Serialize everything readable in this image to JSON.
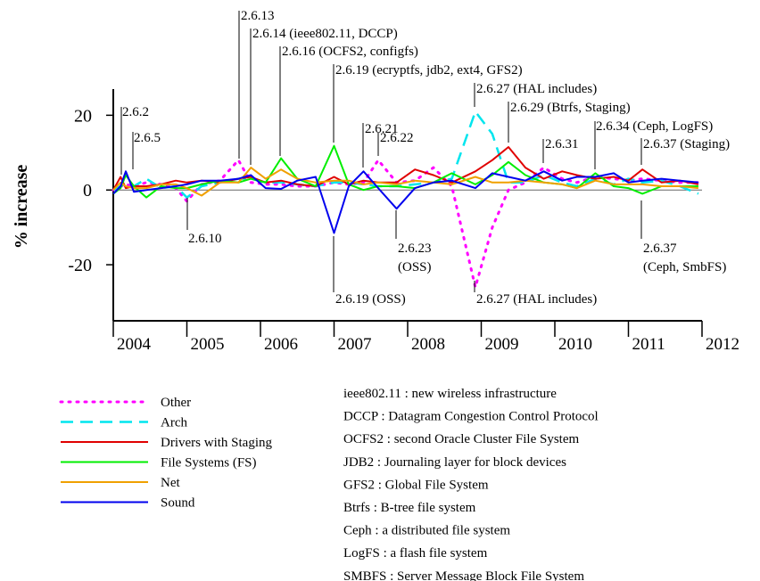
{
  "chart_data": {
    "type": "line",
    "y_label": "% increase",
    "x": [
      2004.0,
      2004.1,
      2004.17,
      2004.28,
      2004.45,
      2004.65,
      2004.85,
      2005.0,
      2005.2,
      2005.45,
      2005.7,
      2005.87,
      2006.07,
      2006.28,
      2006.5,
      2006.75,
      2007.0,
      2007.2,
      2007.4,
      2007.6,
      2007.85,
      2008.1,
      2008.35,
      2008.6,
      2008.92,
      2009.15,
      2009.37,
      2009.6,
      2009.85,
      2010.1,
      2010.3,
      2010.55,
      2010.8,
      2011.0,
      2011.19,
      2011.45,
      2011.7,
      2011.95
    ],
    "series": [
      {
        "name": "Other",
        "color": "#ff00ff",
        "style": "dotted",
        "values": [
          0,
          1,
          1.5,
          1,
          2,
          1.5,
          0.5,
          -3,
          1.5,
          2.5,
          8,
          2,
          1.5,
          1.5,
          1,
          1,
          2,
          1.5,
          2,
          8,
          2,
          2.5,
          6,
          1,
          -26,
          -10,
          0,
          2,
          6,
          3,
          2,
          3.5,
          3,
          2.5,
          3,
          2.5,
          2,
          2
        ]
      },
      {
        "name": "Arch",
        "color": "#00e5ee",
        "style": "dashed",
        "values": [
          0,
          1,
          2,
          1,
          3,
          0.5,
          1,
          -2,
          1,
          2,
          3,
          3,
          2,
          2,
          1.5,
          1,
          2,
          2,
          1.5,
          1,
          1,
          1.5,
          2,
          3,
          21,
          15,
          2,
          2,
          4,
          2,
          1,
          3,
          1.5,
          3,
          2,
          2.5,
          1,
          -1
        ]
      },
      {
        "name": "Drivers with Staging",
        "color": "#e00000",
        "style": "solid",
        "values": [
          0,
          3.5,
          0.5,
          1,
          1,
          1.5,
          2.5,
          2,
          2.5,
          2,
          3,
          3.5,
          2,
          2.5,
          1.5,
          1,
          3.5,
          1.5,
          2.5,
          2,
          2,
          5.5,
          4,
          2,
          5,
          8,
          11.5,
          6,
          3,
          5,
          4,
          3,
          3.5,
          2.5,
          5.5,
          2,
          2.5,
          1.5
        ]
      },
      {
        "name": "File Systems (FS)",
        "color": "#00ee00",
        "style": "solid",
        "values": [
          -1,
          0.5,
          4,
          1,
          -2,
          1,
          0.5,
          0.5,
          1.5,
          2.5,
          2,
          3,
          2,
          8.5,
          3,
          1,
          11.8,
          1.5,
          0,
          1,
          1,
          0.5,
          2,
          4.5,
          1.5,
          4,
          7.5,
          4,
          2,
          1.5,
          0.5,
          4.5,
          1,
          0.5,
          -1,
          1,
          1,
          1
        ]
      },
      {
        "name": "Net",
        "color": "#f0a000",
        "style": "solid",
        "values": [
          0,
          2,
          1,
          0.5,
          0.5,
          1.5,
          1.5,
          0.5,
          -1.5,
          2,
          2,
          6,
          3,
          5.5,
          3,
          2,
          2.5,
          2.5,
          1.5,
          2,
          1.5,
          2.5,
          2,
          1.5,
          3.5,
          2,
          2,
          2.5,
          2,
          1.5,
          0.5,
          2.5,
          1.5,
          1.5,
          1.5,
          1,
          1,
          0.5
        ]
      },
      {
        "name": "Sound",
        "color": "#0000ee",
        "style": "solid",
        "values": [
          -1,
          1,
          5,
          -0.5,
          0,
          0.5,
          1,
          1.5,
          2.5,
          2.5,
          3,
          4,
          0.5,
          0.3,
          2.5,
          3.5,
          -11.5,
          1,
          5,
          0.5,
          -5,
          0.5,
          2,
          2.5,
          0.5,
          4.5,
          3.5,
          2.5,
          5,
          2.5,
          3.5,
          3.5,
          4.5,
          2,
          2.5,
          3,
          2.5,
          2
        ]
      }
    ],
    "xlim": [
      2004,
      2012
    ],
    "xticks": [
      2004,
      2005,
      2006,
      2007,
      2008,
      2009,
      2010,
      2011,
      2012
    ],
    "ylim": [
      -35,
      27
    ],
    "yticks": [
      -20,
      0,
      20
    ],
    "annotations": [
      "2.6.13",
      "2.6.14 (ieee802.11, DCCP)",
      "2.6.16 (OCFS2, configfs)",
      "2.6.19 (ecryptfs, jdb2, ext4, GFS2)",
      "2.6.27 (HAL includes)",
      "2.6.29 (Btrfs, Staging)",
      "2.6.21",
      "2.6.22",
      "2.6.2",
      "2.6.5",
      "2.6.31",
      "2.6.34 (Ceph, LogFS)",
      "2.6.37 (Staging)",
      "2.6.10",
      "2.6.19 (OSS)",
      "2.6.23",
      "(OSS)",
      "2.6.27 (HAL includes)",
      "2.6.37",
      "(Ceph, SmbFS)"
    ],
    "glossary": [
      "ieee802.11 : new wireless infrastructure",
      "DCCP : Datagram Congestion Control Protocol",
      "OCFS2 : second Oracle Cluster File System",
      "JDB2 : Journaling layer for block devices",
      "GFS2 : Global File System",
      "Btrfs : B-tree file system",
      "Ceph : a distributed file system",
      "LogFS : a flash file system",
      "SMBFS : Server Message Block File System"
    ]
  }
}
